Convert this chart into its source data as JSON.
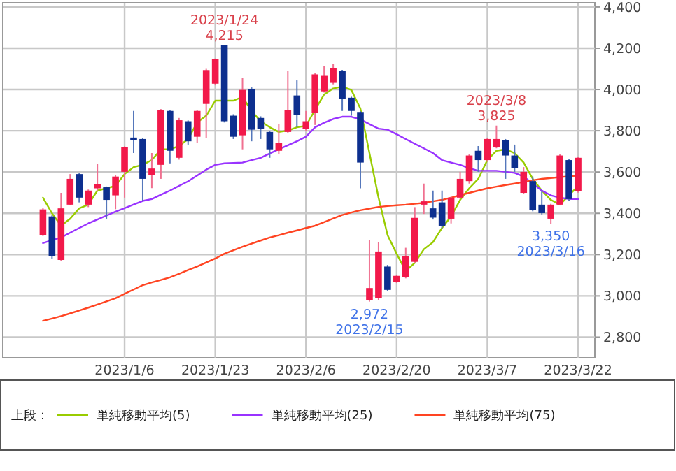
{
  "chart_data": {
    "type": "candlestick",
    "categories": [
      null,
      null,
      null,
      null,
      null,
      null,
      null,
      null,
      null,
      "2023/1/6",
      null,
      null,
      null,
      null,
      null,
      null,
      null,
      null,
      null,
      "2023/1/23",
      null,
      null,
      null,
      null,
      null,
      null,
      null,
      null,
      null,
      "2023/2/6",
      null,
      null,
      null,
      null,
      null,
      null,
      null,
      null,
      null,
      "2023/2/20",
      null,
      null,
      null,
      null,
      null,
      null,
      null,
      null,
      null,
      "2023/3/7",
      null,
      null,
      null,
      null,
      null,
      null,
      null,
      null,
      null,
      "2023/3/22"
    ],
    "ohlc": [
      [
        3295,
        3425,
        3290,
        3419
      ],
      [
        3385,
        3390,
        3181,
        3192
      ],
      [
        3174,
        3499,
        3170,
        3424
      ],
      [
        3442,
        3590,
        3440,
        3567
      ],
      [
        3590,
        3595,
        3453,
        3476
      ],
      [
        3442,
        3515,
        3430,
        3510
      ],
      [
        3521,
        3640,
        3510,
        3540
      ],
      [
        3526,
        3530,
        3374,
        3465
      ],
      [
        3487,
        3585,
        3420,
        3578
      ],
      [
        3601,
        3725,
        3476,
        3721
      ],
      [
        3767,
        3896,
        3692,
        3755
      ],
      [
        3760,
        3765,
        3460,
        3567
      ],
      [
        3585,
        3692,
        3522,
        3617
      ],
      [
        3635,
        3905,
        3567,
        3901
      ],
      [
        3896,
        3900,
        3642,
        3703
      ],
      [
        3669,
        3862,
        3660,
        3851
      ],
      [
        3846,
        3850,
        3733,
        3749
      ],
      [
        3771,
        3900,
        3740,
        3896
      ],
      [
        3930,
        4100,
        3764,
        4094
      ],
      [
        4028,
        4150,
        4020,
        4146
      ],
      [
        4214,
        4215,
        3840,
        3846
      ],
      [
        3873,
        3880,
        3760,
        3771
      ],
      [
        3778,
        4055,
        3710,
        3998
      ],
      [
        4003,
        4010,
        3749,
        3805
      ],
      [
        3862,
        3870,
        3760,
        3810
      ],
      [
        3794,
        3800,
        3669,
        3710
      ],
      [
        3703,
        3832,
        3687,
        3742
      ],
      [
        3794,
        4089,
        3790,
        3901
      ],
      [
        3971,
        4044,
        3817,
        3878
      ],
      [
        3810,
        3896,
        3800,
        3846
      ],
      [
        3885,
        4080,
        3828,
        4073
      ],
      [
        3991,
        4112,
        3985,
        4066
      ],
      [
        4032,
        4123,
        4025,
        4105
      ],
      [
        4089,
        4095,
        3896,
        3953
      ],
      [
        3960,
        3965,
        3873,
        3896
      ],
      [
        3891,
        3895,
        3521,
        3646
      ],
      [
        2980,
        3272,
        2972,
        3038
      ],
      [
        2988,
        3260,
        2980,
        3215
      ],
      [
        3142,
        3150,
        3022,
        3029
      ],
      [
        3067,
        3100,
        3062,
        3097
      ],
      [
        3090,
        3233,
        3085,
        3192
      ],
      [
        3165,
        3430,
        3160,
        3378
      ],
      [
        3442,
        3544,
        3397,
        3458
      ],
      [
        3424,
        3510,
        3370,
        3379
      ],
      [
        3453,
        3510,
        3328,
        3340
      ],
      [
        3374,
        3480,
        3351,
        3476
      ],
      [
        3476,
        3601,
        3470,
        3567
      ],
      [
        3556,
        3685,
        3544,
        3680
      ],
      [
        3703,
        3726,
        3601,
        3658
      ],
      [
        3658,
        3764,
        3650,
        3760
      ],
      [
        3719,
        3825,
        3715,
        3760
      ],
      [
        3755,
        3760,
        3567,
        3680
      ],
      [
        3680,
        3733,
        3601,
        3619
      ],
      [
        3499,
        3624,
        3495,
        3601
      ],
      [
        3556,
        3578,
        3410,
        3415
      ],
      [
        3442,
        3510,
        3395,
        3401
      ],
      [
        3374,
        3446,
        3350,
        3442
      ],
      [
        3442,
        3685,
        3438,
        3680
      ],
      [
        3658,
        3662,
        3460,
        3469
      ],
      [
        3506,
        3672,
        3500,
        3669
      ]
    ],
    "series": [
      {
        "type": "line",
        "name": "単純移動平均(5)",
        "color": "#99cc00",
        "values": [
          3476,
          3400,
          3340,
          3374,
          3424,
          3442,
          3510,
          3521,
          3533,
          3590,
          3624,
          3635,
          3658,
          3710,
          3710,
          3726,
          3760,
          3840,
          3873,
          3946,
          3946,
          3946,
          3964,
          3896,
          3846,
          3817,
          3794,
          3801,
          3817,
          3824,
          3901,
          3976,
          4005,
          4014,
          3998,
          3908,
          3692,
          3476,
          3294,
          3204,
          3120,
          3160,
          3226,
          3260,
          3329,
          3385,
          3465,
          3521,
          3567,
          3658,
          3703,
          3710,
          3692,
          3646,
          3567,
          3510,
          3465,
          3442,
          3487,
          3533
        ]
      },
      {
        "type": "line",
        "name": "単純移動平均(25)",
        "color": "#9933ff",
        "values": [
          3256,
          3270,
          3283,
          3306,
          3329,
          3351,
          3370,
          3389,
          3408,
          3425,
          3443,
          3460,
          3469,
          3490,
          3510,
          3533,
          3555,
          3583,
          3612,
          3635,
          3642,
          3644,
          3646,
          3658,
          3669,
          3690,
          3710,
          3730,
          3749,
          3771,
          3817,
          3839,
          3857,
          3868,
          3868,
          3855,
          3832,
          3810,
          3805,
          3783,
          3760,
          3737,
          3715,
          3692,
          3658,
          3646,
          3635,
          3619,
          3606,
          3606,
          3606,
          3601,
          3596,
          3578,
          3544,
          3510,
          3487,
          3476,
          3469,
          3469
        ]
      },
      {
        "type": "line",
        "name": "単純移動平均(75)",
        "color": "#ff4422",
        "values": [
          2879,
          2890,
          2902,
          2915,
          2929,
          2943,
          2958,
          2973,
          2988,
          3010,
          3031,
          3052,
          3065,
          3077,
          3090,
          3107,
          3125,
          3142,
          3162,
          3181,
          3204,
          3221,
          3238,
          3253,
          3268,
          3283,
          3294,
          3306,
          3317,
          3329,
          3340,
          3357,
          3375,
          3392,
          3404,
          3415,
          3423,
          3431,
          3435,
          3439,
          3442,
          3446,
          3451,
          3458,
          3465,
          3476,
          3488,
          3499,
          3510,
          3521,
          3529,
          3537,
          3544,
          3552,
          3560,
          3567,
          3571,
          3575,
          3579,
          3583
        ]
      }
    ],
    "ylim": [
      2700,
      4420
    ],
    "yticks": [
      {
        "value": 2800,
        "label": "2,800"
      },
      {
        "value": 3000,
        "label": "3,000"
      },
      {
        "value": 3200,
        "label": "3,200"
      },
      {
        "value": 3400,
        "label": "3,400"
      },
      {
        "value": 3600,
        "label": "3,600"
      },
      {
        "value": 3800,
        "label": "3,800"
      },
      {
        "value": 4000,
        "label": "4,000"
      },
      {
        "value": 4200,
        "label": "4,200"
      },
      {
        "value": 4400,
        "label": "4,400"
      }
    ],
    "grid": true,
    "legend": "bottom",
    "legend_title": "上段：",
    "annotations": [
      {
        "text": "2023/1/24",
        "y": 4215
      },
      {
        "text": "4,215",
        "y": 4215
      },
      {
        "text": "2023/3/8",
        "y": 3825
      },
      {
        "text": "3,825",
        "y": 3825
      },
      {
        "text": "2,972",
        "y": 2972
      },
      {
        "text": "2023/2/15",
        "y": 2972
      },
      {
        "text": "3,350",
        "y": 3350
      },
      {
        "text": "2023/3/16",
        "y": 3350
      }
    ]
  }
}
